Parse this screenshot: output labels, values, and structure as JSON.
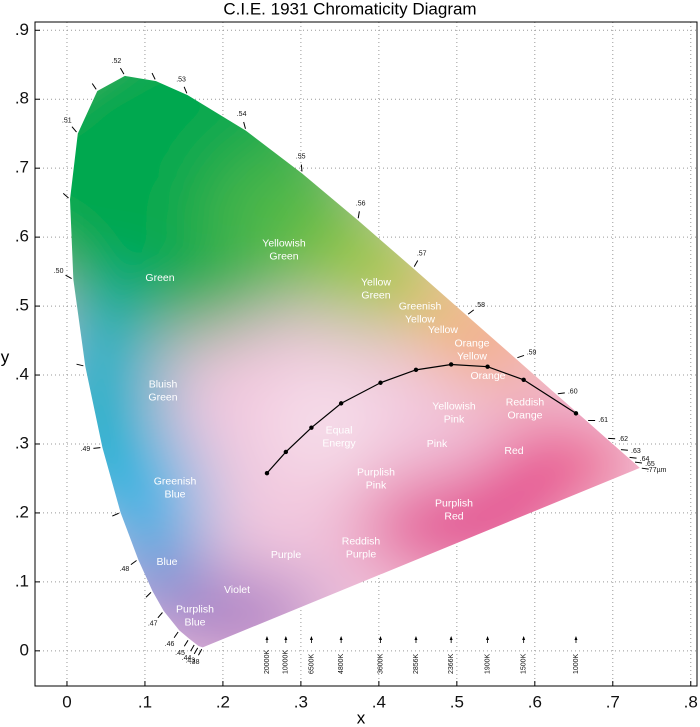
{
  "chart_data": {
    "type": "chromaticity",
    "title": "C.I.E. 1931 Chromaticity Diagram",
    "x_label": "x",
    "y_label": "y",
    "xlim": [
      -0.041,
      0.808
    ],
    "ylim": [
      -0.051,
      0.912
    ],
    "xticks": [
      0,
      {
        "value": 0.1,
        "label": ".1"
      },
      {
        "value": 0.2,
        "label": ".2"
      },
      {
        "value": 0.3,
        "label": ".3"
      },
      {
        "value": 0.4,
        "label": ".4"
      },
      {
        "value": 0.5,
        "label": ".5"
      },
      {
        "value": 0.6,
        "label": ".6"
      },
      {
        "value": 0.7,
        "label": ".7"
      },
      {
        "value": 0.8,
        "label": ".8"
      }
    ],
    "yticks": [
      0,
      {
        "value": 0.1,
        "label": ".1"
      },
      {
        "value": 0.2,
        "label": ".2"
      },
      {
        "value": 0.3,
        "label": ".3"
      },
      {
        "value": 0.4,
        "label": ".4"
      },
      {
        "value": 0.5,
        "label": ".5"
      },
      {
        "value": 0.6,
        "label": ".6"
      },
      {
        "value": 0.7,
        "label": ".7"
      },
      {
        "value": 0.8,
        "label": ".8"
      },
      {
        "value": 0.9,
        "label": ".9"
      }
    ],
    "grid": true,
    "spectral_locus": {
      "labels": [
        ".38",
        ".43",
        ".44",
        ".45",
        ".46",
        ".47",
        null,
        ".48",
        null,
        ".49",
        null,
        ".50",
        null,
        ".51",
        null,
        ".52",
        null,
        ".53",
        ".54",
        ".55",
        ".56",
        ".57",
        ".58",
        ".59",
        ".60",
        ".61",
        ".62",
        ".63",
        ".64",
        ".65",
        ".77µm"
      ],
      "x": [
        0.1741,
        0.1689,
        0.1644,
        0.1566,
        0.144,
        0.1241,
        0.1096,
        0.0913,
        0.0687,
        0.0454,
        0.0235,
        0.0082,
        0.0039,
        0.0139,
        0.0389,
        0.0743,
        0.1142,
        0.1547,
        0.2296,
        0.3016,
        0.3731,
        0.4441,
        0.5125,
        0.5752,
        0.627,
        0.6658,
        0.6915,
        0.7079,
        0.719,
        0.726,
        0.7347
      ],
      "y": [
        0.005,
        0.0069,
        0.0109,
        0.0177,
        0.0297,
        0.0578,
        0.0868,
        0.1327,
        0.2007,
        0.295,
        0.4127,
        0.5384,
        0.6548,
        0.7502,
        0.812,
        0.8338,
        0.8262,
        0.8059,
        0.7543,
        0.6923,
        0.6245,
        0.5547,
        0.4866,
        0.4242,
        0.3725,
        0.334,
        0.3083,
        0.292,
        0.2809,
        0.274,
        0.2653
      ]
    },
    "planckian_locus": {
      "labels": [
        "20000K",
        "10000K",
        "6500K",
        "4800K",
        "3600K",
        "2856K",
        "2366K",
        "1900K",
        "1500K",
        "1000K"
      ],
      "x": [
        0.2565,
        0.2807,
        0.3135,
        0.3516,
        0.4021,
        0.4476,
        0.4927,
        0.5394,
        0.5857,
        0.6528
      ],
      "y": [
        0.2577,
        0.2884,
        0.3237,
        0.3589,
        0.3888,
        0.4075,
        0.4153,
        0.4121,
        0.3931,
        0.3444
      ]
    },
    "regions": [
      [
        "Green"
      ],
      [
        "Yellowish",
        "Green"
      ],
      [
        "Yellow",
        "Green"
      ],
      [
        "Greenish",
        "Yellow"
      ],
      [
        "Yellow"
      ],
      [
        "Orange",
        "Yellow"
      ],
      [
        "Orange"
      ],
      [
        "Reddish",
        "Orange"
      ],
      [
        "Red"
      ],
      [
        "Yellowish",
        "Pink"
      ],
      [
        "Pink"
      ],
      [
        "Equal",
        "Energy"
      ],
      [
        "Purplish",
        "Pink"
      ],
      [
        "Purplish",
        "Red"
      ],
      [
        "Reddish",
        "Purple"
      ],
      [
        "Purple"
      ],
      [
        "Violet"
      ],
      [
        "Purplish",
        "Blue"
      ],
      [
        "Blue"
      ],
      [
        "Greenish",
        "Blue"
      ],
      [
        "Bluish",
        "Green"
      ]
    ]
  }
}
